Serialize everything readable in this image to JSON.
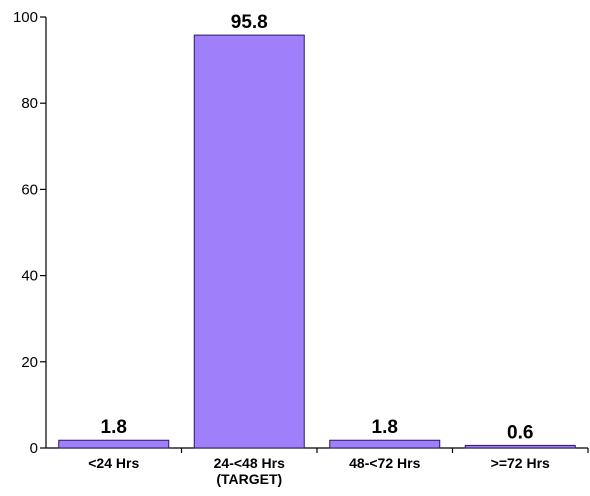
{
  "chart_data": {
    "type": "bar",
    "title": "",
    "xlabel": "",
    "ylabel": "",
    "ylim": [
      0,
      100
    ],
    "yticks": [
      "0",
      "20",
      "40",
      "60",
      "80",
      "100"
    ],
    "categories": [
      [
        "<24 Hrs"
      ],
      [
        "24-<48 Hrs",
        "(TARGET)"
      ],
      [
        "48-<72 Hrs"
      ],
      [
        ">=72 Hrs"
      ]
    ],
    "values": [
      1.8,
      95.8,
      1.8,
      0.6
    ],
    "value_labels": [
      "1.8",
      "95.8",
      "1.8",
      "0.6"
    ],
    "bar_color": "#a080fa",
    "bar_stroke": "#2a1a5c",
    "grid": false,
    "legend": "none"
  }
}
